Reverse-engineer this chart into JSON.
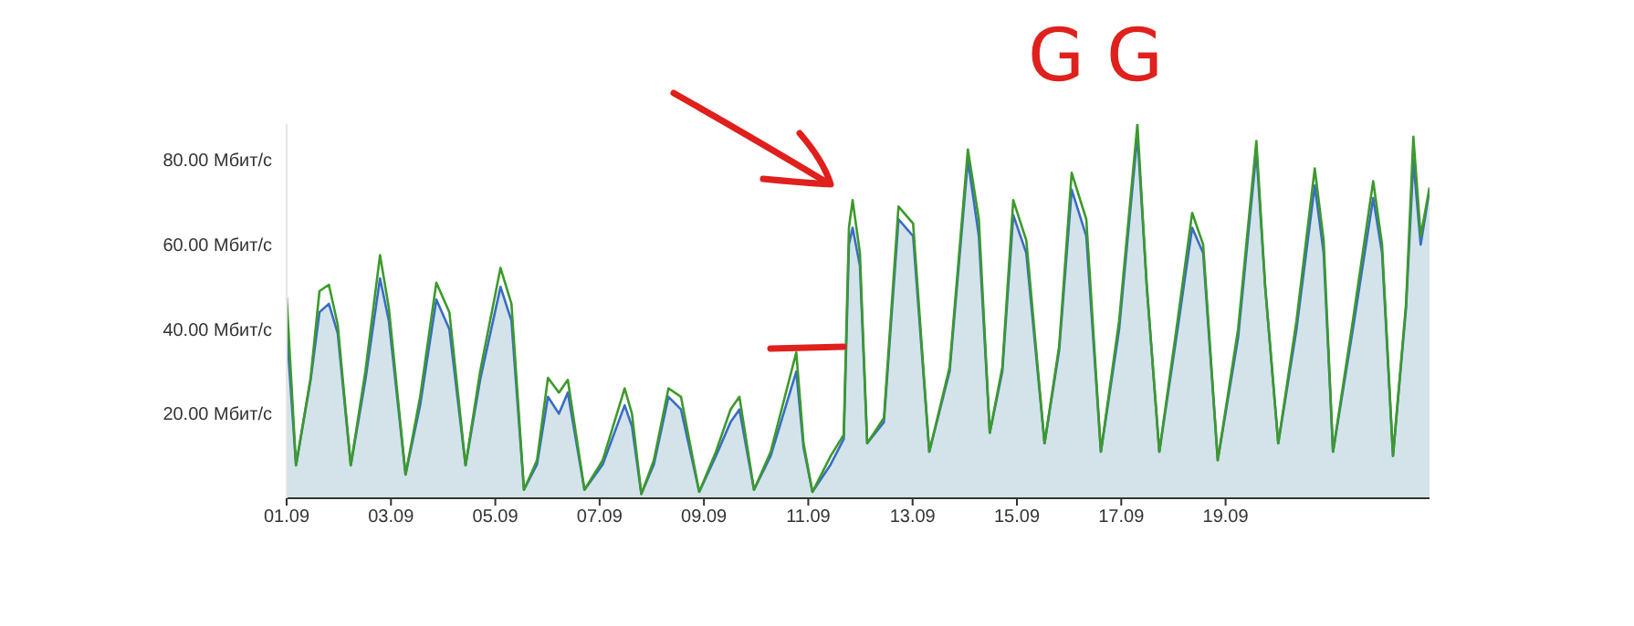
{
  "chart_data": {
    "type": "area",
    "annotations": [
      "GG"
    ],
    "x": [
      "--09-01T00:00",
      "--09-01T04:19",
      "--09-01T11:02",
      "--09-01T15:07",
      "--09-01T19:26",
      "--09-01T23:31",
      "--09-02T05:31",
      "--09-02T12:14",
      "--09-02T18:58",
      "--09-02T23:02",
      "--09-03T06:43",
      "--09-03T13:26",
      "--09-03T20:53",
      "--09-04T02:53",
      "--09-04T10:19",
      "--09-04T17:02",
      "--09-05T02:24",
      "--09-05T07:26",
      "--09-05T13:12",
      "--09-05T19:12",
      "--09-06T00:14",
      "--09-06T05:17",
      "--09-06T09:22",
      "--09-06T17:02",
      "--09-07T01:26",
      "--09-07T11:31",
      "--09-07T14:53",
      "--09-07T19:12",
      "--09-08T00:58",
      "--09-08T07:41",
      "--09-08T13:26",
      "--09-08T21:50",
      "--09-09T05:31",
      "--09-09T12:14",
      "--09-09T16:19",
      "--09-09T23:02",
      "--09-10T06:43",
      "--09-10T18:29",
      "--09-10T21:50",
      "--09-11T01:55",
      "--09-11T10:19",
      "--09-11T16:19",
      "--09-11T18:43",
      "--09-11T20:24",
      "--09-11T23:46",
      "--09-12T03:07",
      "--09-12T10:48",
      "--09-12T17:31",
      "--09-13T00:14",
      "--09-13T07:41",
      "--09-13T17:02",
      "--09-14T01:26",
      "--09-14T06:29",
      "--09-14T11:31",
      "--09-14T17:17",
      "--09-14T22:19",
      "--09-15T04:19",
      "--09-15T12:43",
      "--09-15T19:26",
      "--09-16T01:12",
      "--09-16T07:55",
      "--09-16T14:38",
      "--09-16T23:02",
      "--09-17T07:26",
      "--09-17T11:46",
      "--09-17T17:31",
      "--09-18T01:55",
      "--09-18T08:38",
      "--09-18T13:41",
      "--09-18T20:24",
      "--09-19T05:46",
      "--09-19T14:10",
      "--09-19T18:14",
      "--09-20T00:14",
      "--09-20T08:38",
      "--09-20T17:02",
      "--09-20T21:07",
      "--09-21T01:26",
      "--09-21T10:34",
      "--09-21T19:55",
      "--09-22T00:00",
      "--09-22T05:02",
      "--09-22T11:02",
      "--09-22T14:24",
      "--09-22T17:46",
      "--09-22T21:50"
    ],
    "series": [
      {
        "type": "line",
        "color": "#3c9a2a",
        "values": [
          47.5,
          7.8,
          28.5,
          49,
          50.5,
          41,
          7.8,
          30,
          57.5,
          45,
          5.6,
          24,
          51,
          44,
          7.8,
          30,
          54.5,
          46,
          2,
          9,
          28.5,
          25,
          28,
          2,
          9,
          26,
          20,
          1,
          9,
          26,
          24,
          1.5,
          11,
          21,
          24,
          2,
          11,
          34.5,
          13,
          1.5,
          10,
          15,
          64,
          70.5,
          58,
          13,
          19,
          69,
          65,
          11,
          31,
          82.5,
          66,
          15.5,
          31,
          70.5,
          61,
          13,
          36,
          77,
          66,
          11,
          42,
          88.5,
          50,
          11,
          42,
          67.5,
          60,
          9,
          40,
          84.5,
          50,
          13,
          42,
          78,
          61,
          11,
          42,
          75,
          60,
          10,
          46,
          85.5,
          62,
          73.5
        ]
      },
      {
        "color": "#3a6cc6",
        "values": [
          40,
          7.8,
          28,
          44,
          46,
          39,
          7.8,
          28,
          52,
          42,
          5.6,
          22,
          47,
          40,
          7.8,
          28,
          50,
          42,
          2,
          8,
          24,
          20,
          25,
          2,
          8,
          22,
          17,
          1,
          8,
          24,
          21,
          1.5,
          10,
          18,
          21,
          2,
          10,
          30,
          12,
          1.5,
          8,
          14,
          60,
          64,
          55,
          13,
          18,
          66,
          62,
          11,
          30,
          80,
          62,
          15.5,
          30,
          67,
          58,
          13,
          35,
          73,
          62,
          11,
          40,
          86,
          50,
          11,
          40,
          64,
          58,
          9,
          38,
          82,
          50,
          13,
          40,
          74,
          58,
          11,
          40,
          71,
          58,
          10,
          45,
          80,
          60,
          73
        ]
      }
    ],
    "xlim": [
      "--09-01",
      "--09-22T21:50"
    ],
    "xticks": [
      {
        "value": "--09-01",
        "label": "01.09"
      },
      {
        "value": "--09-03",
        "label": "03.09"
      },
      {
        "value": "--09-05",
        "label": "05.09"
      },
      {
        "value": "--09-07",
        "label": "07.09"
      },
      {
        "value": "--09-09",
        "label": "09.09"
      },
      {
        "value": "--09-11",
        "label": "11.09"
      },
      {
        "value": "--09-13",
        "label": "13.09"
      },
      {
        "value": "--09-15",
        "label": "15.09"
      },
      {
        "value": "--09-17",
        "label": "17.09"
      },
      {
        "value": "--09-19",
        "label": "19.09"
      }
    ],
    "ylim": [
      0,
      88.5
    ],
    "yticks": [
      {
        "value": 20,
        "label": "20.00 Мбит/с"
      },
      {
        "value": 40,
        "label": "40.00 Мбит/с"
      },
      {
        "value": 60,
        "label": "60.00 Мбит/с"
      },
      {
        "value": 80,
        "label": "80.00 Мбит/с"
      }
    ]
  }
}
